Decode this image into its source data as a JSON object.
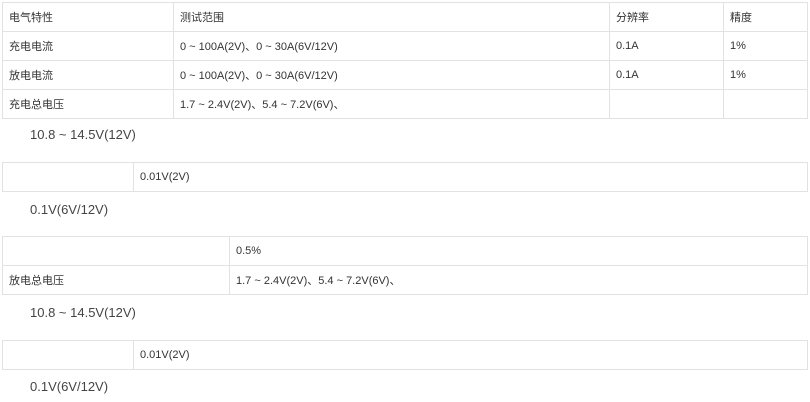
{
  "table1": {
    "header": [
      "电气特性",
      "测试范围",
      "分辨率",
      "精度"
    ],
    "rows": [
      [
        "充电电流",
        "0 ~ 100A(2V)、0 ~ 30A(6V/12V)",
        "0.1A",
        "1%"
      ],
      [
        "放电电流",
        "0 ~ 100A(2V)、0 ~ 30A(6V/12V)",
        "0.1A",
        "1%"
      ],
      [
        "充电总电压",
        "1.7 ~ 2.4V(2V)、5.4 ~ 7.2V(6V)、",
        "",
        ""
      ]
    ]
  },
  "para1": "10.8 ~ 14.5V(12V)",
  "table2": {
    "cells": [
      "",
      "0.01V(2V)"
    ]
  },
  "para2": "0.1V(6V/12V)",
  "table3": {
    "rows": [
      [
        "",
        "0.5%"
      ],
      [
        "放电总电压",
        "1.7 ~ 2.4V(2V)、5.4 ~ 7.2V(6V)、"
      ]
    ]
  },
  "para3": "10.8 ~ 14.5V(12V)",
  "table4": {
    "cells": [
      "",
      "0.01V(2V)"
    ]
  },
  "para4": "0.1V(6V/12V)"
}
